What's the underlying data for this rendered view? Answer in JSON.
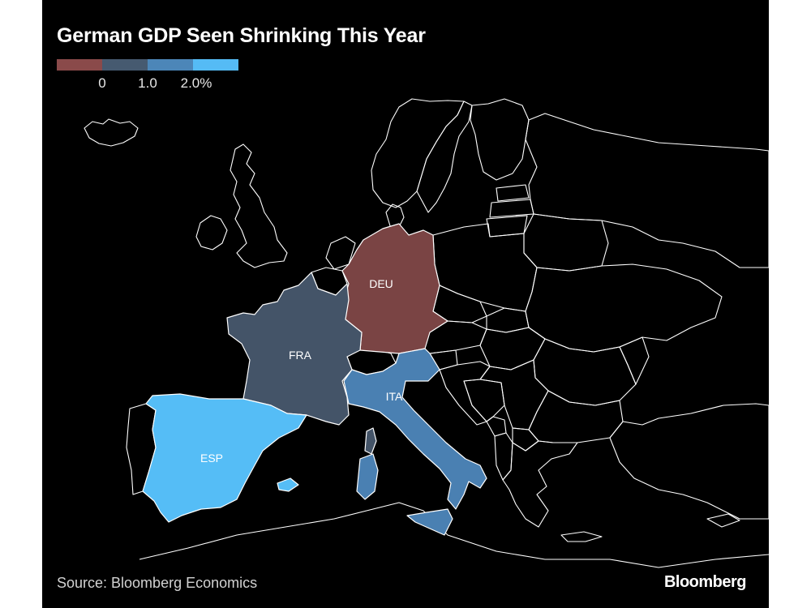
{
  "title": "German GDP Seen Shrinking This Year",
  "legend": {
    "colors": [
      "#8a4a4a",
      "#465a70",
      "#4c86b8",
      "#55bbf5"
    ],
    "ticks": [
      "0",
      "1.0",
      "2.0%"
    ]
  },
  "map": {
    "highlighted_countries": [
      {
        "code": "DEU",
        "label": "DEU",
        "color": "#7a4444"
      },
      {
        "code": "FRA",
        "label": "FRA",
        "color": "#445468"
      },
      {
        "code": "ITA",
        "label": "ITA",
        "color": "#4a80b2"
      },
      {
        "code": "ESP",
        "label": "ESP",
        "color": "#55bdf6"
      }
    ],
    "border_color": "#ffffff",
    "background": "#000000"
  },
  "source": "Source: Bloomberg Economics",
  "brand": "Bloomberg"
}
